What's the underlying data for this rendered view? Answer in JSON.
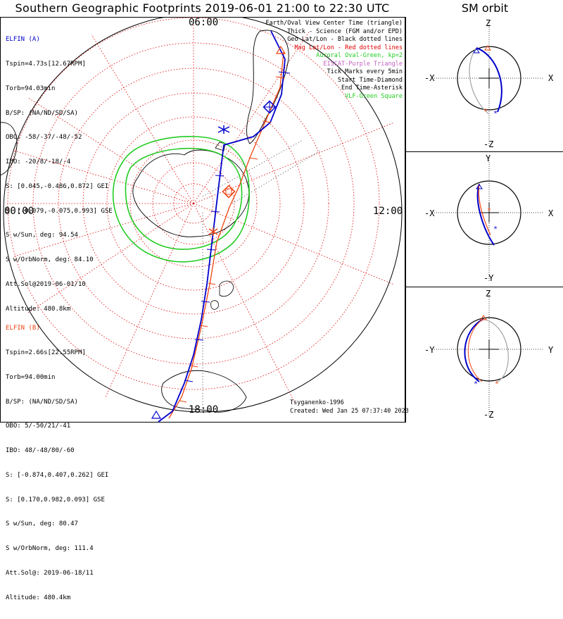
{
  "title": "Southern Geographic Footprints 2019-06-01 21:00 to 22:30 UTC",
  "sm_title": "SM orbit",
  "elfin_a": {
    "name": "ELFIN (A)",
    "lines": [
      "Tspin=4.73s[12.67RPM]",
      "Torb=94.03min",
      "B/SP: (NA/ND/SD/SA)",
      "OBO: -58/-37/-48/-52",
      "IBO: -20/8/-18/-4",
      "S: [0.045,-0.486,0.872] GEI",
      "S: [-0.079,-0.075,0.993] GSE",
      "S w/Sun, deg: 94.54",
      "S w/OrbNorm, deg: 84.10",
      "Att.Sol@2019-06-01/10",
      "Altitude: 480.8km"
    ]
  },
  "elfin_b": {
    "name": "ELFIN (B)",
    "lines": [
      "Tspin=2.66s[22.55RPM]",
      "Torb=94.00min",
      "B/SP: (NA/ND/SD/SA)",
      "OBO: 5/-50/21/-41",
      "IBO: 48/-48/80/-60",
      "S: [-0.874,0.407,0.262] GEI",
      "S: [0.170,0.982,0.093] GSE",
      "S w/Sun, deg: 80.47",
      "S w/OrbNorm, deg: 111.4",
      "Att.Sol@: 2019-06-18/11",
      "Altitude: 480.4km"
    ]
  },
  "legend": [
    {
      "text": "Earth/Oval View Center Time (triangle)",
      "color": "#000000"
    },
    {
      "text": "Thick - Science (FGM and/or EPD)",
      "color": "#000000"
    },
    {
      "text": "Geo Lat/Lon - Black dotted lines",
      "color": "#000000"
    },
    {
      "text": "Mag Lat/Lon - Red dotted lines",
      "color": "#e00000"
    },
    {
      "text": "Auroral Oval-Green, kp=2",
      "color": "#22cc22"
    },
    {
      "text": "EISCAT-Purple Triangle",
      "color": "#c060c0"
    },
    {
      "text": "Tick Marks every 5min",
      "color": "#000000"
    },
    {
      "text": "Start Time-Diamond",
      "color": "#000000"
    },
    {
      "text": "End Time-Asterisk",
      "color": "#000000"
    },
    {
      "text": "VLF-Green Square",
      "color": "#22cc22"
    }
  ],
  "map_labels": {
    "top": "06:00",
    "left": "00:00",
    "right": "12:00",
    "bottom": "18:00"
  },
  "credits": {
    "model": "Tsyganenko-1996",
    "created": "Created: Wed Jan 25 07:37:40 2023"
  },
  "orbit_panels": [
    {
      "top": "Z",
      "bottom": "-Z",
      "left": "-X",
      "right": "X"
    },
    {
      "top": "Y",
      "bottom": "-Y",
      "left": "-X",
      "right": "X"
    },
    {
      "top": "Z",
      "bottom": "-Z",
      "left": "-Y",
      "right": "Y"
    }
  ],
  "colors": {
    "elfin_a": "#0000cc",
    "elfin_b": "#ee4411",
    "oval": "#22cc22",
    "grid_mag": "#e00000"
  }
}
